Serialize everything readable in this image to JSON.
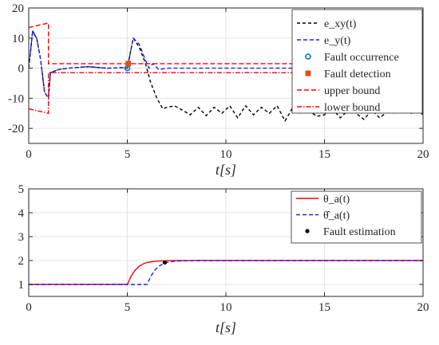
{
  "colors": {
    "e_xy": "#000000",
    "e_y": "#1f1fff",
    "occurrence": "#0072bd",
    "detection": "#d95319",
    "bounds": "#ff0000",
    "theta": "#ff0000",
    "theta_hat": "#1f1fff",
    "estimation": "#000000",
    "axes": "#262626",
    "grid": "#dcdcdc"
  },
  "chart_data": [
    {
      "type": "line",
      "xlabel": "t[s]",
      "xlim": [
        0,
        20
      ],
      "ylim": [
        -25,
        20
      ],
      "xticks": [
        0,
        5,
        10,
        15,
        20
      ],
      "yticks": [
        -20,
        -10,
        0,
        10,
        20
      ],
      "grid": true,
      "legend_position": "top-right",
      "series": [
        {
          "name": "e_xy(t)",
          "style": "dashed",
          "x": [
            0,
            0.2,
            0.4,
            0.6,
            0.8,
            1.0,
            1.1,
            1.5,
            2,
            3,
            4,
            4.8,
            5.0,
            5.3,
            5.6,
            5.9,
            6.2,
            6.5,
            6.8,
            7.0,
            7.4,
            7.8,
            8.2,
            8.6,
            9.0,
            9.4,
            9.8,
            10.2,
            10.6,
            11.0,
            11.4,
            11.8,
            12.2,
            12.6,
            13.0,
            13.4,
            13.8,
            14.2,
            14.6,
            15.0,
            15.4,
            15.8,
            16.2,
            16.6,
            17.0,
            17.4,
            17.8,
            18.2,
            18.6,
            19.0,
            19.4,
            19.8,
            20
          ],
          "y": [
            0,
            12,
            10,
            3,
            -8,
            -10,
            -1.5,
            -0.5,
            0,
            0.5,
            0,
            0.2,
            0,
            10,
            7,
            2,
            -5,
            -10,
            -13.5,
            -13,
            -12.5,
            -14,
            -15.5,
            -13,
            -15.8,
            -13,
            -15,
            -12.5,
            -16.5,
            -12.5,
            -15.5,
            -13,
            -15,
            -12.5,
            -17.5,
            -13,
            -15,
            -14,
            -16,
            -15.5,
            -13.5,
            -16.5,
            -14,
            -15,
            -17,
            -14,
            -16.5,
            -14.5,
            -15,
            -13,
            -15,
            -13,
            -16
          ]
        },
        {
          "name": "e_y(t)",
          "style": "dashed",
          "x": [
            0,
            0.2,
            0.4,
            0.6,
            0.8,
            1.0,
            1.1,
            1.5,
            2,
            3,
            4,
            4.8,
            5.0,
            5.3,
            5.6,
            5.9,
            6.1,
            6.3,
            6.6,
            7.0,
            8,
            20
          ],
          "y": [
            0,
            12.5,
            10,
            3,
            -8,
            -10,
            -1.5,
            -0.5,
            0,
            0.5,
            0,
            0.2,
            0,
            10,
            8,
            3,
            0,
            1.5,
            -0.5,
            0,
            0,
            0
          ]
        },
        {
          "name": "Fault occurrence",
          "style": "marker-circle",
          "x": [
            5.0
          ],
          "y": [
            0
          ]
        },
        {
          "name": "Fault detection",
          "style": "marker-square",
          "x": [
            5.05
          ],
          "y": [
            1.5
          ]
        },
        {
          "name": "upper bound",
          "style": "dashed",
          "x": [
            0,
            1.0,
            1.0,
            20
          ],
          "y": [
            13.5,
            15,
            1.5,
            1.5
          ]
        },
        {
          "name": "lower bound",
          "style": "dash-dot",
          "x": [
            0,
            1.0,
            1.0,
            20
          ],
          "y": [
            -13.5,
            -15,
            -1.5,
            -1.5
          ]
        }
      ]
    },
    {
      "type": "line",
      "xlabel": "t[s]",
      "xlim": [
        0,
        20
      ],
      "ylim": [
        0.5,
        5
      ],
      "xticks": [
        0,
        5,
        10,
        15,
        20
      ],
      "yticks": [
        1,
        2,
        3,
        4,
        5
      ],
      "grid": true,
      "legend_position": "top-right",
      "series": [
        {
          "name": "θ_a(t)",
          "style": "solid",
          "x": [
            0,
            5.0,
            5.2,
            5.4,
            5.6,
            5.8,
            6.0,
            6.3,
            6.6,
            7.0,
            7.5,
            8,
            20
          ],
          "y": [
            1,
            1,
            1.35,
            1.6,
            1.76,
            1.86,
            1.92,
            1.96,
            1.98,
            1.99,
            2,
            2,
            2
          ]
        },
        {
          "name": "θ̂_a(t)",
          "style": "dashed",
          "x": [
            0,
            6.0,
            6.2,
            6.4,
            6.6,
            6.8,
            7.0,
            7.3,
            7.6,
            8.0,
            8.5,
            9,
            20
          ],
          "y": [
            1,
            1,
            1.35,
            1.6,
            1.76,
            1.86,
            1.92,
            1.96,
            1.98,
            1.99,
            2,
            2,
            2
          ]
        },
        {
          "name": "Fault estimation",
          "style": "marker-dot",
          "x": [
            6.9
          ],
          "y": [
            1.92
          ]
        }
      ]
    }
  ]
}
